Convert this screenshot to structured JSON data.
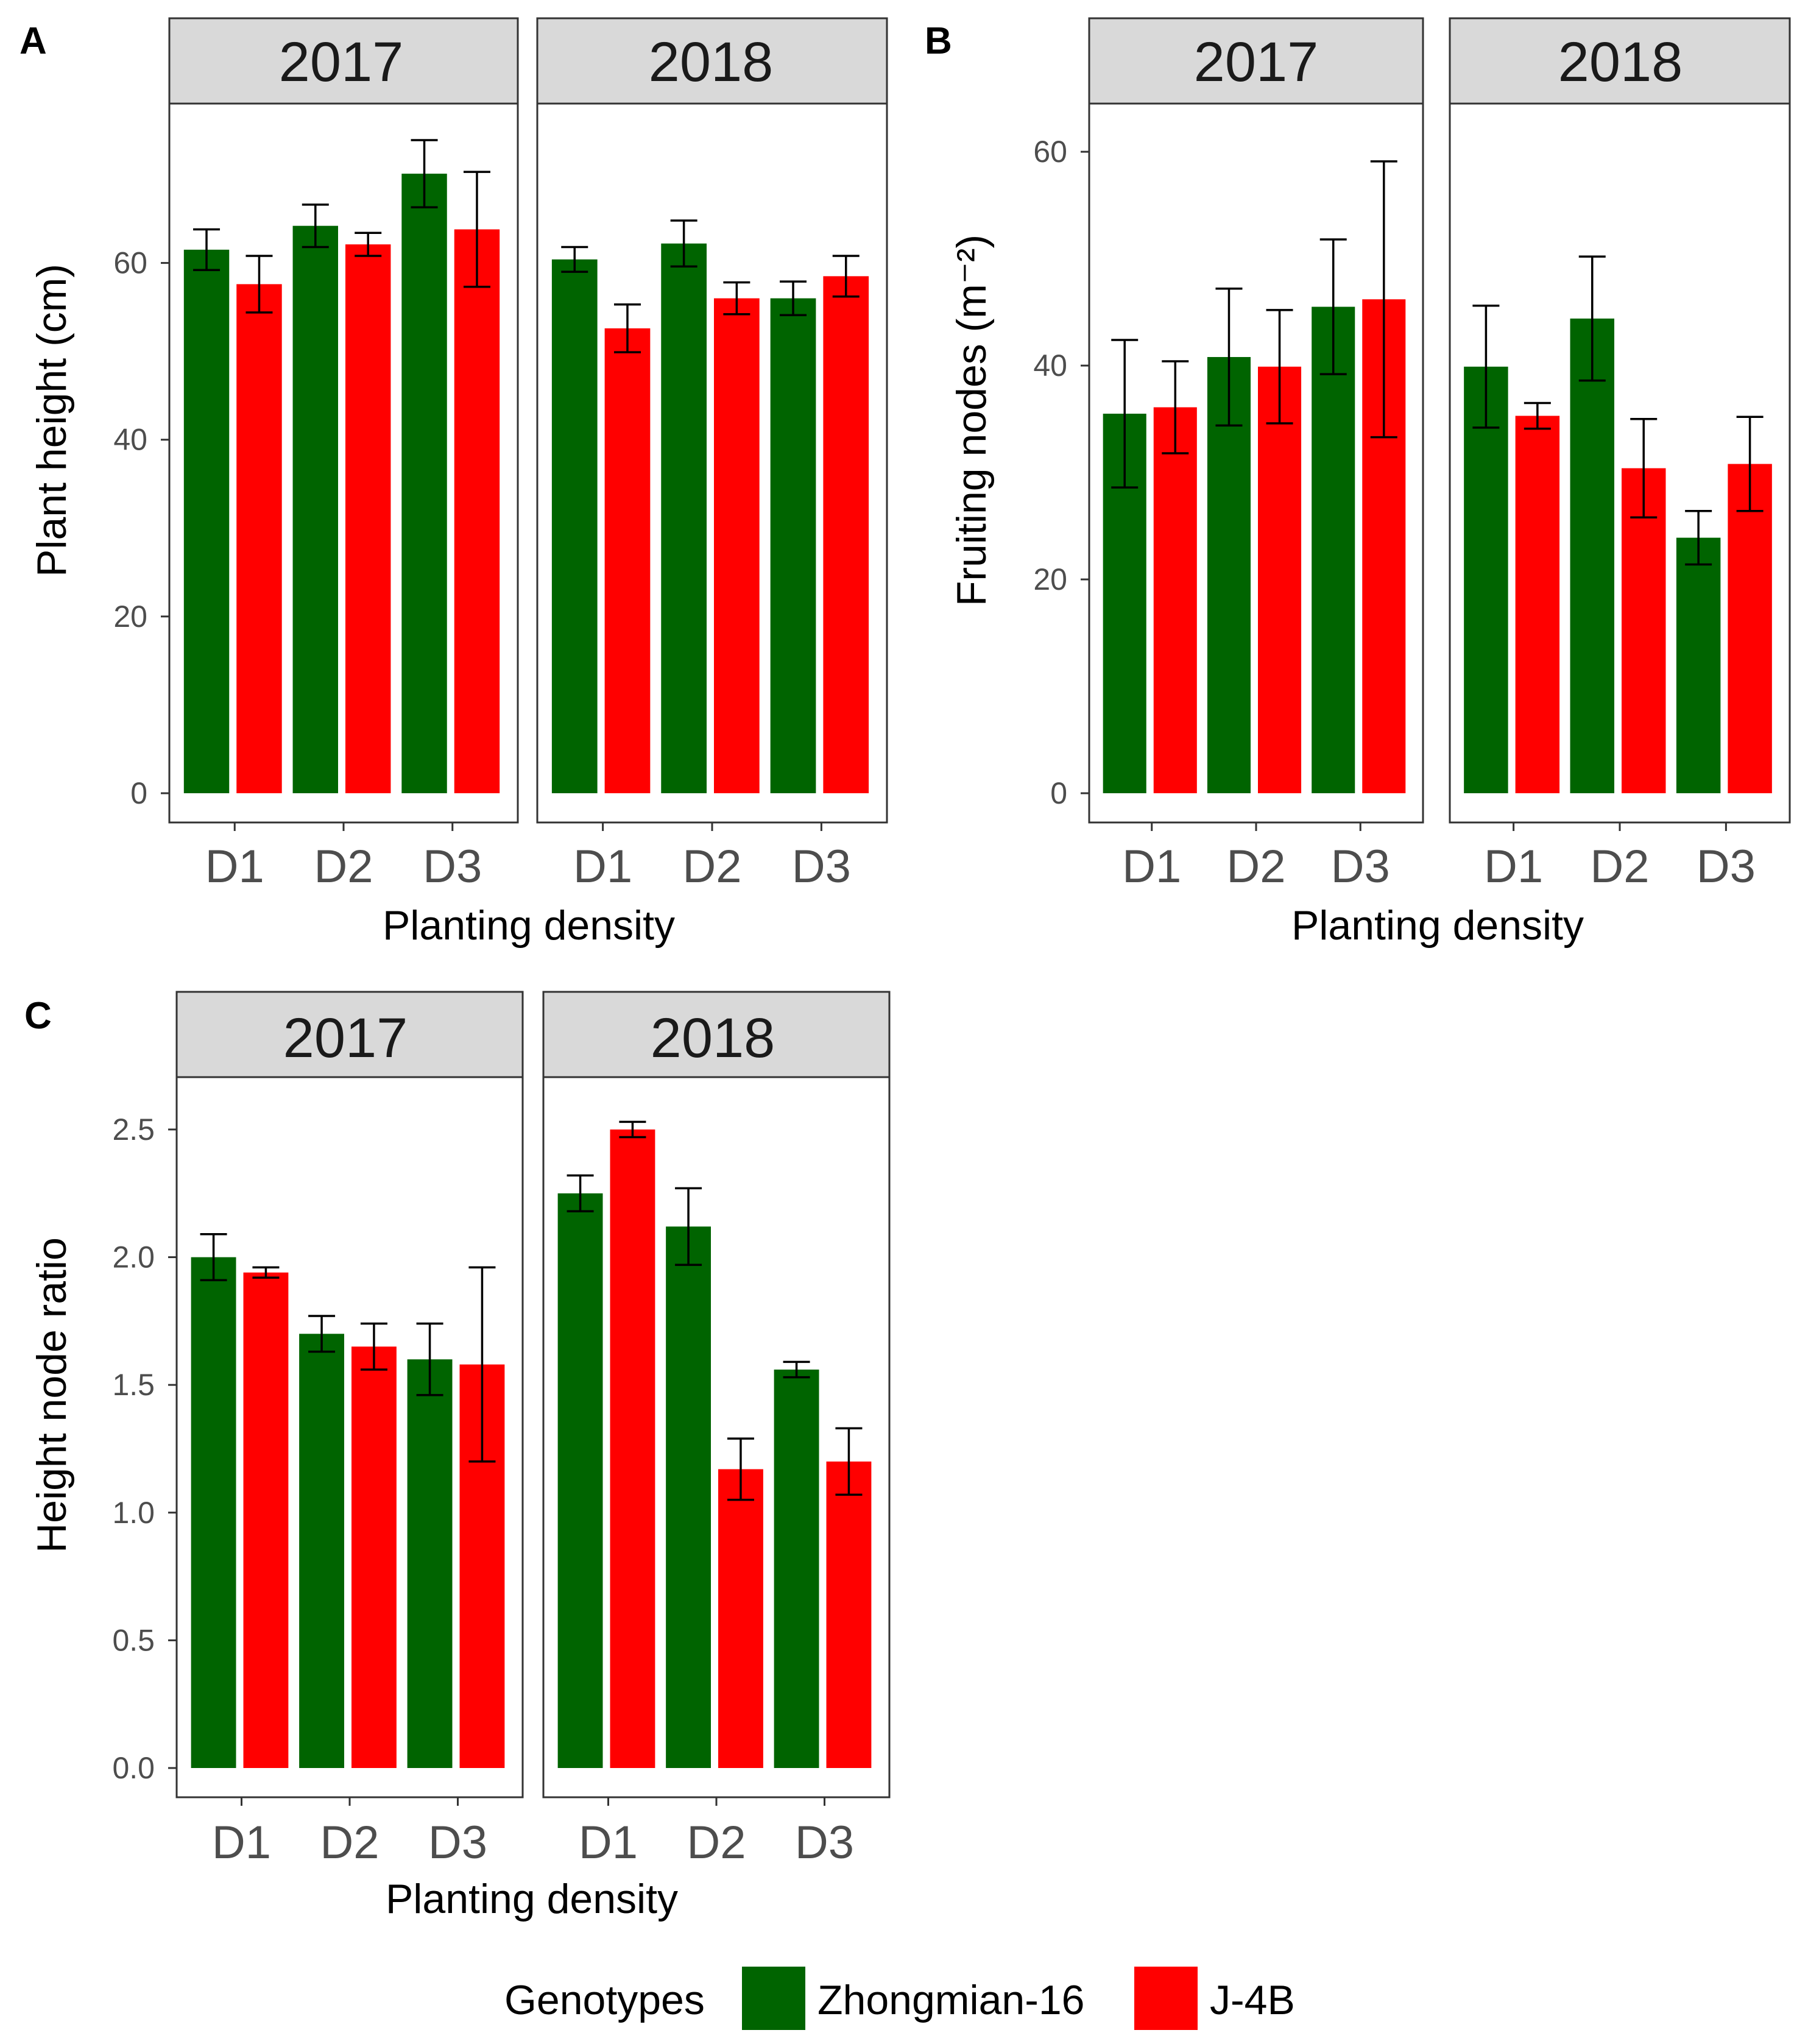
{
  "legend": {
    "title": "Genotypes",
    "entries": [
      {
        "label": "Zhongmian-16",
        "color": "#006400"
      },
      {
        "label": "J-4B",
        "color": "#ff0000"
      }
    ]
  },
  "chart_data": [
    {
      "panel": "A",
      "type": "bar",
      "facets": [
        "2017",
        "2018"
      ],
      "categories": [
        "D1",
        "D2",
        "D3"
      ],
      "xlabel": "Planting density",
      "ylabel": "Plant height (cm)",
      "ylim": [
        0,
        75
      ],
      "yticks": [
        0,
        20,
        40,
        60
      ],
      "series": [
        {
          "name": "Zhongmian-16",
          "values": {
            "2017": [
              61.5,
              64.2,
              70.1
            ],
            "2018": [
              60.4,
              62.2,
              56.0
            ]
          },
          "errors": {
            "2017": [
              2.3,
              2.4,
              3.8
            ],
            "2018": [
              1.4,
              2.6,
              1.9
            ]
          }
        },
        {
          "name": "J-4B",
          "values": {
            "2017": [
              57.6,
              62.1,
              63.8
            ],
            "2018": [
              52.6,
              56.0,
              58.5
            ]
          },
          "errors": {
            "2017": [
              3.2,
              1.3,
              6.5
            ],
            "2018": [
              2.7,
              1.8,
              2.3
            ]
          }
        }
      ]
    },
    {
      "panel": "B",
      "type": "bar",
      "facets": [
        "2017",
        "2018"
      ],
      "categories": [
        "D1",
        "D2",
        "D3"
      ],
      "xlabel": "Planting density",
      "ylabel": "Fruiting nodes (m⁻²)",
      "ylim": [
        0,
        62
      ],
      "yticks": [
        0,
        20,
        40,
        60
      ],
      "series": [
        {
          "name": "Zhongmian-16",
          "values": {
            "2017": [
              35.5,
              40.8,
              45.5
            ],
            "2018": [
              39.9,
              44.4,
              23.9
            ]
          },
          "errors": {
            "2017": [
              6.9,
              6.4,
              6.3
            ],
            "2018": [
              5.7,
              5.8,
              2.5
            ]
          }
        },
        {
          "name": "J-4B",
          "values": {
            "2017": [
              36.1,
              39.9,
              46.2
            ],
            "2018": [
              35.3,
              30.4,
              30.8
            ]
          },
          "errors": {
            "2017": [
              4.3,
              5.3,
              12.9
            ],
            "2018": [
              1.2,
              4.6,
              4.4
            ]
          }
        }
      ]
    },
    {
      "panel": "C",
      "type": "bar",
      "facets": [
        "2017",
        "2018"
      ],
      "categories": [
        "D1",
        "D2",
        "D3"
      ],
      "xlabel": "Planting density",
      "ylabel": "Height node ratio",
      "ylim": [
        0,
        2.6
      ],
      "yticks": [
        "0.0",
        "0.5",
        "1.0",
        "1.5",
        "2.0",
        "2.5"
      ],
      "series": [
        {
          "name": "Zhongmian-16",
          "values": {
            "2017": [
              2.0,
              1.7,
              1.6
            ],
            "2018": [
              2.25,
              2.12,
              1.56
            ]
          },
          "errors": {
            "2017": [
              0.09,
              0.07,
              0.14
            ],
            "2018": [
              0.07,
              0.15,
              0.03
            ]
          }
        },
        {
          "name": "J-4B",
          "values": {
            "2017": [
              1.94,
              1.65,
              1.58
            ],
            "2018": [
              2.5,
              1.17,
              1.2
            ]
          },
          "errors": {
            "2017": [
              0.02,
              0.09,
              0.38
            ],
            "2018": [
              0.03,
              0.12,
              0.13
            ]
          }
        }
      ]
    }
  ]
}
